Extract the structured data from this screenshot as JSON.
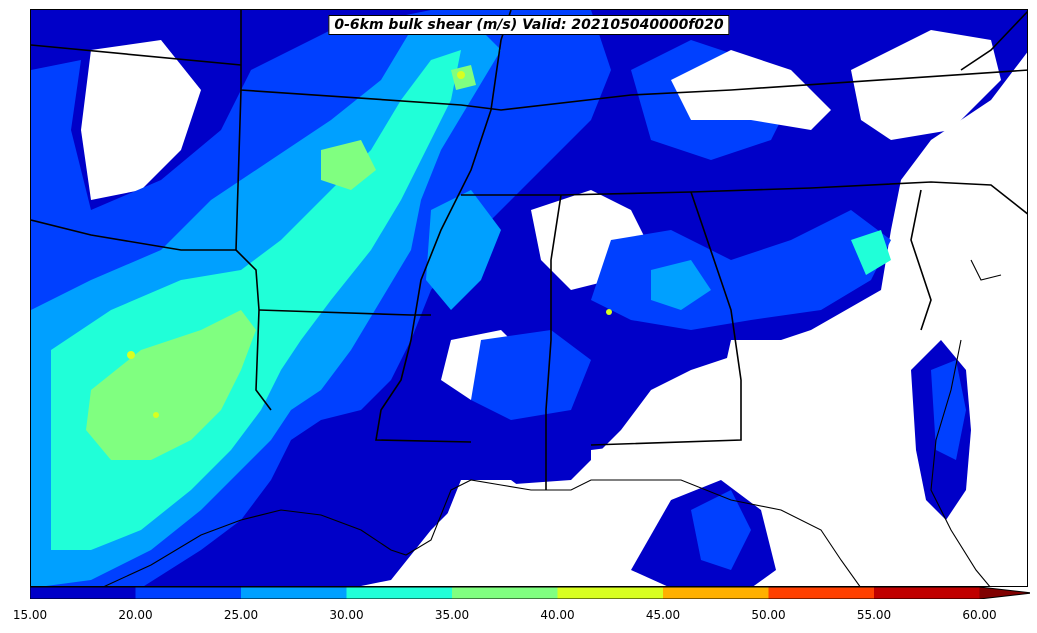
{
  "title": "0-6km bulk shear (m/s) Valid: 202105040000f020",
  "colorbar": {
    "levels": [
      "15.00",
      "20.00",
      "25.00",
      "30.00",
      "35.00",
      "40.00",
      "45.00",
      "50.00",
      "55.00",
      "60.00"
    ],
    "colors": [
      "#0000c8",
      "#0040ff",
      "#00a0ff",
      "#20ffd8",
      "#80ff80",
      "#d8ff20",
      "#ffb000",
      "#ff4000",
      "#c00000",
      "#800000"
    ]
  }
}
